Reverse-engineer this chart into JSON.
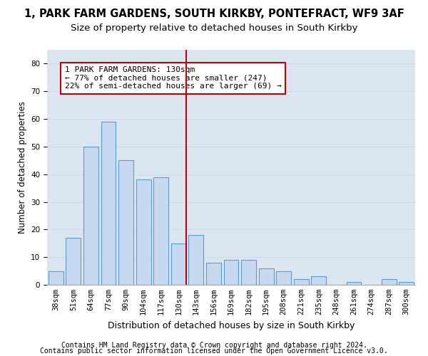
{
  "title": "1, PARK FARM GARDENS, SOUTH KIRKBY, PONTEFRACT, WF9 3AF",
  "subtitle": "Size of property relative to detached houses in South Kirkby",
  "xlabel": "Distribution of detached houses by size in South Kirkby",
  "ylabel": "Number of detached properties",
  "categories": [
    "38sqm",
    "51sqm",
    "64sqm",
    "77sqm",
    "90sqm",
    "104sqm",
    "117sqm",
    "130sqm",
    "143sqm",
    "156sqm",
    "169sqm",
    "182sqm",
    "195sqm",
    "208sqm",
    "221sqm",
    "235sqm",
    "248sqm",
    "261sqm",
    "274sqm",
    "287sqm",
    "300sqm"
  ],
  "values": [
    5,
    17,
    50,
    59,
    45,
    38,
    39,
    15,
    18,
    8,
    9,
    9,
    6,
    5,
    2,
    3,
    0,
    1,
    0,
    2,
    1
  ],
  "bar_color": "#c6d9f0",
  "bar_edge_color": "#5b9bd5",
  "vline_color": "#c00000",
  "vline_index": 7,
  "annotation_text": "1 PARK FARM GARDENS: 130sqm\n← 77% of detached houses are smaller (247)\n22% of semi-detached houses are larger (69) →",
  "annotation_box_color": "#c00000",
  "ylim": [
    0,
    85
  ],
  "yticks": [
    0,
    10,
    20,
    30,
    40,
    50,
    60,
    70,
    80
  ],
  "grid_color": "#cfd9ea",
  "background_color": "#dce6f1",
  "footer1": "Contains HM Land Registry data © Crown copyright and database right 2024.",
  "footer2": "Contains public sector information licensed under the Open Government Licence v3.0.",
  "title_fontsize": 10.5,
  "subtitle_fontsize": 9.5,
  "xlabel_fontsize": 9,
  "ylabel_fontsize": 8.5,
  "tick_fontsize": 7.5,
  "footer_fontsize": 7,
  "annot_fontsize": 8
}
